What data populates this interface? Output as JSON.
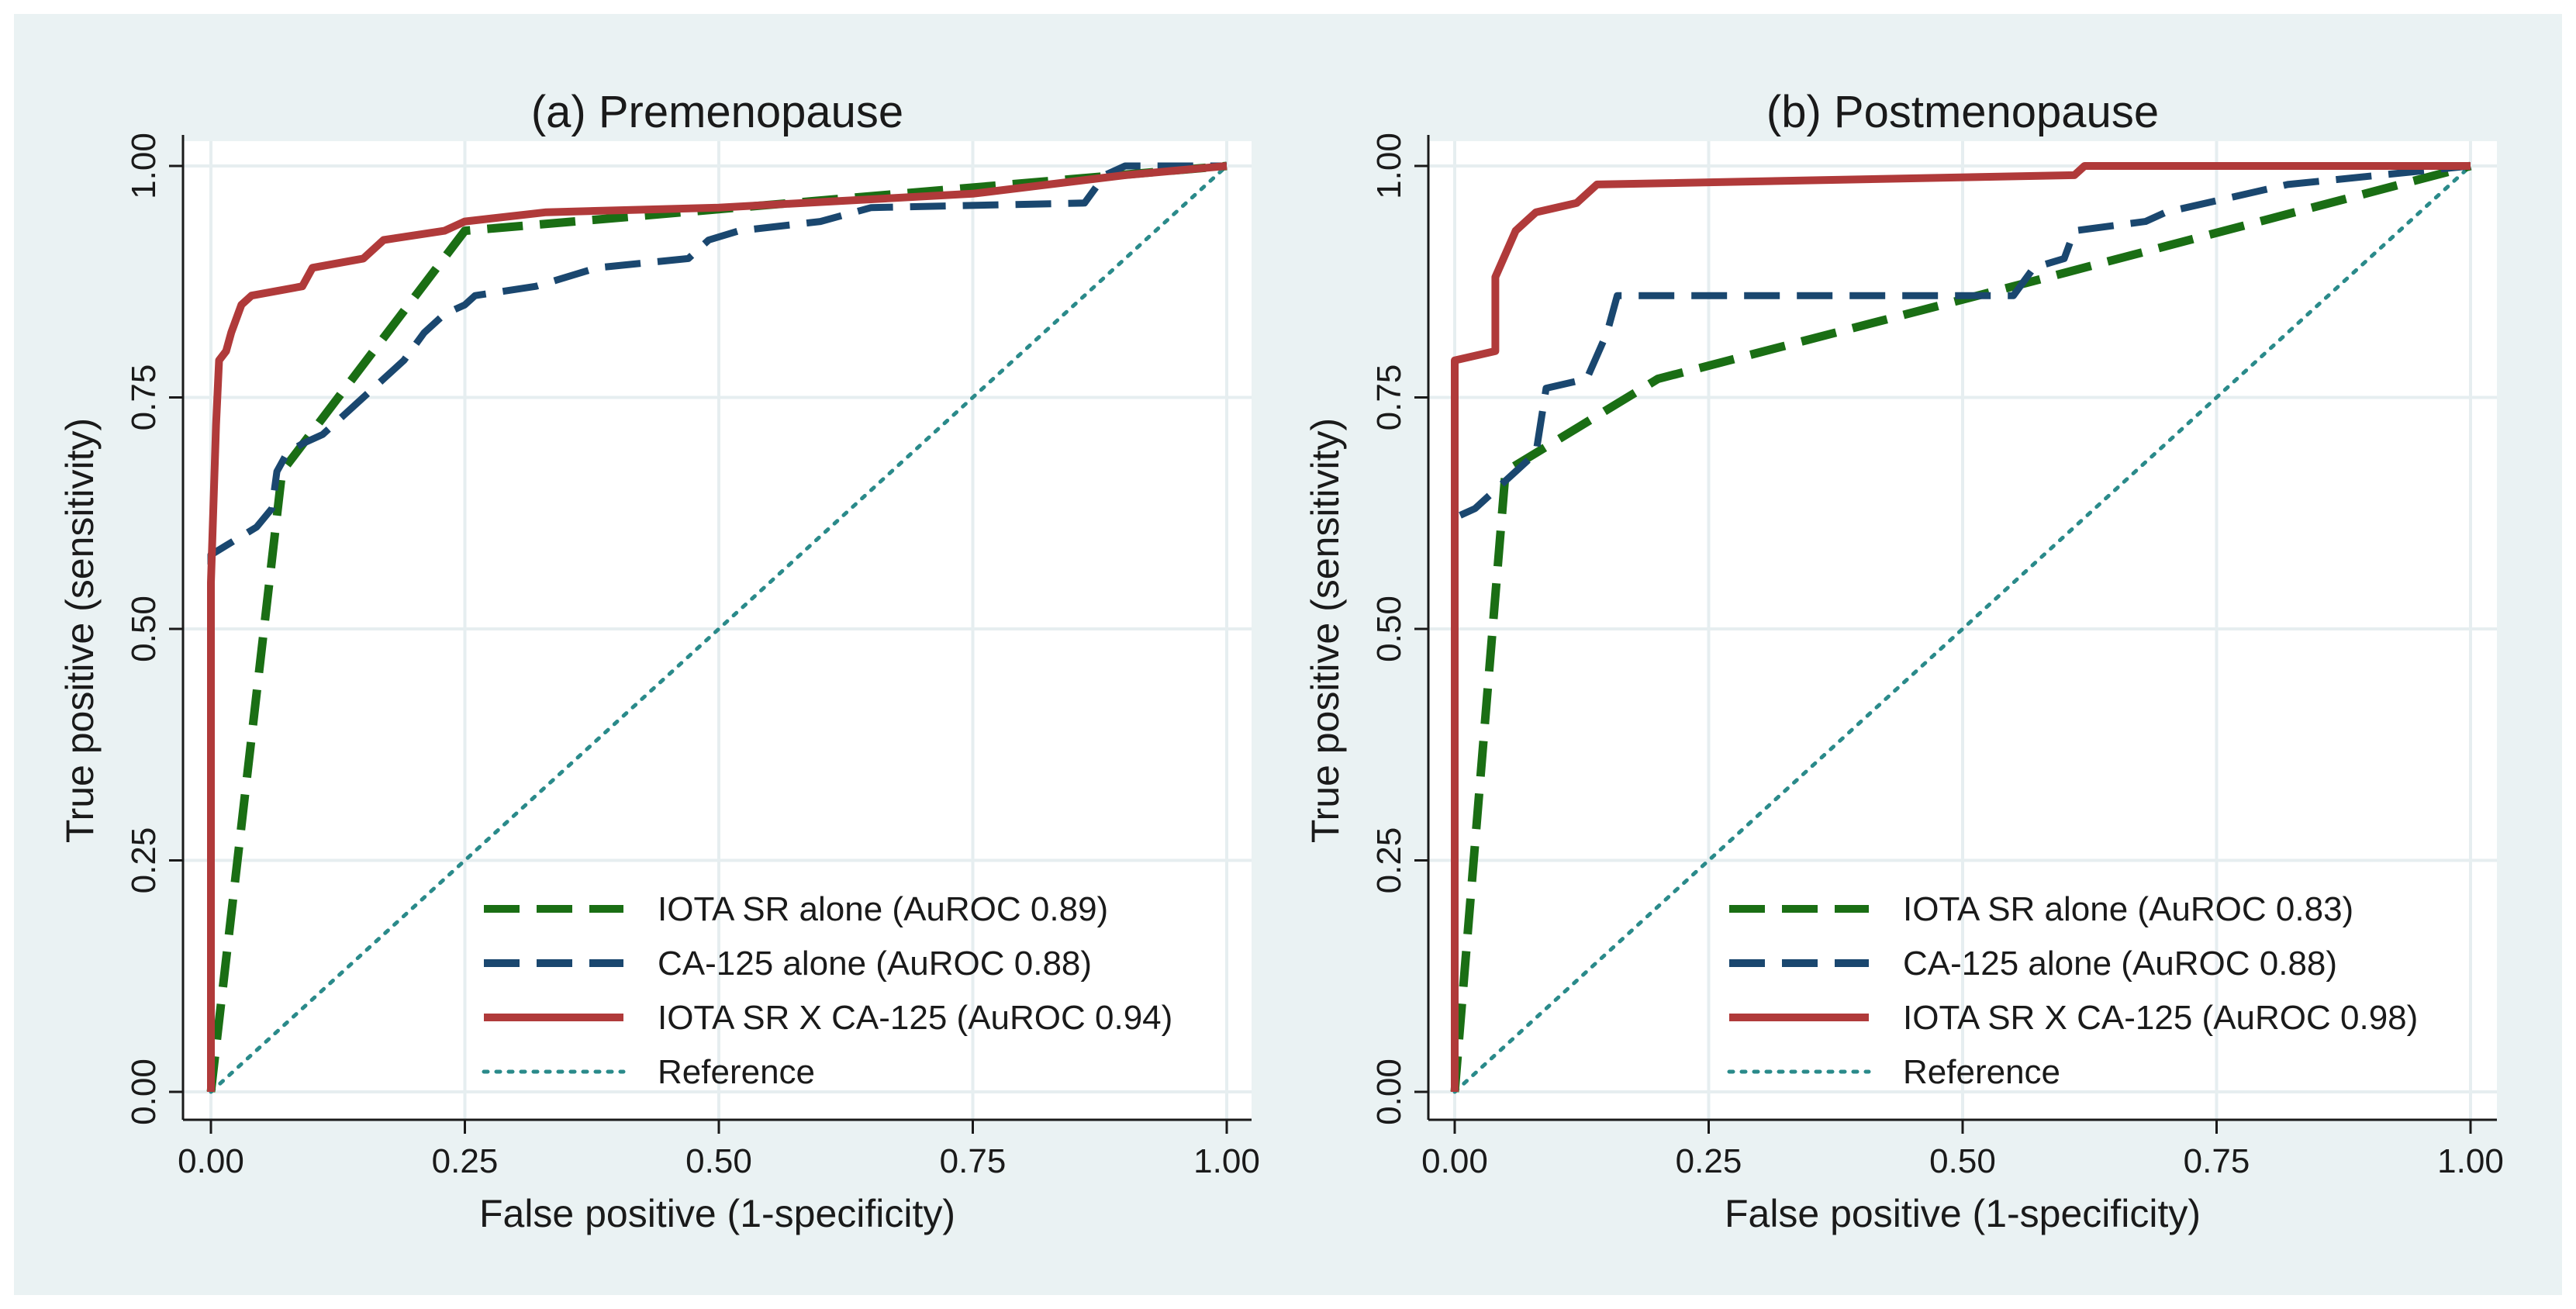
{
  "colors": {
    "background": "#eaf2f3",
    "plot_background": "#ffffff",
    "grid": "#e6eef0",
    "iota": "#1a6e14",
    "ca125": "#1a476f",
    "combined": "#b03a3a",
    "reference": "#2a8a8a"
  },
  "chart_data": [
    {
      "type": "line",
      "title": "(a) Premenopause",
      "xlabel": "False positive (1-specificity)",
      "ylabel": "True positive (sensitivity)",
      "xlim": [
        0,
        1
      ],
      "ylim": [
        0,
        1
      ],
      "xticks": [
        "0.00",
        "0.25",
        "0.50",
        "0.75",
        "1.00"
      ],
      "yticks": [
        "0.00",
        "0.25",
        "0.50",
        "0.75",
        "1.00"
      ],
      "grid": true,
      "legend_position": "bottom-right",
      "series": [
        {
          "key": "iota",
          "name": "IOTA SR alone (AuROC 0.89)",
          "style": "dashed",
          "points": [
            [
              0,
              0
            ],
            [
              0.07,
              0.67
            ],
            [
              0.25,
              0.93
            ],
            [
              1,
              1
            ]
          ]
        },
        {
          "key": "ca125",
          "name": "CA-125 alone (AuROC 0.88)",
          "style": "dashed",
          "points": [
            [
              0,
              0
            ],
            [
              0,
              0.58
            ],
            [
              0.015,
              0.59
            ],
            [
              0.03,
              0.6
            ],
            [
              0.045,
              0.61
            ],
            [
              0.06,
              0.63
            ],
            [
              0.065,
              0.67
            ],
            [
              0.075,
              0.69
            ],
            [
              0.09,
              0.7
            ],
            [
              0.11,
              0.71
            ],
            [
              0.13,
              0.73
            ],
            [
              0.15,
              0.75
            ],
            [
              0.17,
              0.77
            ],
            [
              0.19,
              0.79
            ],
            [
              0.21,
              0.82
            ],
            [
              0.23,
              0.84
            ],
            [
              0.25,
              0.85
            ],
            [
              0.26,
              0.86
            ],
            [
              0.32,
              0.87
            ],
            [
              0.38,
              0.89
            ],
            [
              0.47,
              0.9
            ],
            [
              0.49,
              0.92
            ],
            [
              0.52,
              0.93
            ],
            [
              0.6,
              0.94
            ],
            [
              0.65,
              0.955
            ],
            [
              0.86,
              0.96
            ],
            [
              0.88,
              0.99
            ],
            [
              0.9,
              1.0
            ],
            [
              1,
              1
            ]
          ]
        },
        {
          "key": "combined",
          "name": "IOTA SR X CA-125 (AuROC 0.94)",
          "style": "solid",
          "points": [
            [
              0,
              0
            ],
            [
              0,
              0.55
            ],
            [
              0.005,
              0.72
            ],
            [
              0.008,
              0.79
            ],
            [
              0.015,
              0.8
            ],
            [
              0.02,
              0.82
            ],
            [
              0.03,
              0.85
            ],
            [
              0.04,
              0.86
            ],
            [
              0.09,
              0.87
            ],
            [
              0.1,
              0.89
            ],
            [
              0.15,
              0.9
            ],
            [
              0.17,
              0.92
            ],
            [
              0.23,
              0.93
            ],
            [
              0.25,
              0.94
            ],
            [
              0.33,
              0.95
            ],
            [
              0.5,
              0.955
            ],
            [
              0.75,
              0.97
            ],
            [
              0.9,
              0.99
            ],
            [
              1,
              1
            ]
          ]
        },
        {
          "key": "reference",
          "name": "Reference",
          "style": "dotted",
          "points": [
            [
              0,
              0
            ],
            [
              1,
              1
            ]
          ]
        }
      ]
    },
    {
      "type": "line",
      "title": "(b) Postmenopause",
      "xlabel": "False positive (1-specificity)",
      "ylabel": "True positive (sensitivity)",
      "xlim": [
        0,
        1
      ],
      "ylim": [
        0,
        1
      ],
      "xticks": [
        "0.00",
        "0.25",
        "0.50",
        "0.75",
        "1.00"
      ],
      "yticks": [
        "0.00",
        "0.25",
        "0.50",
        "0.75",
        "1.00"
      ],
      "grid": true,
      "legend_position": "bottom-right",
      "series": [
        {
          "key": "iota",
          "name": "IOTA SR alone (AuROC 0.83)",
          "style": "dashed",
          "points": [
            [
              0,
              0
            ],
            [
              0.05,
              0.67
            ],
            [
              0.2,
              0.77
            ],
            [
              0.55,
              0.87
            ],
            [
              1,
              1
            ]
          ]
        },
        {
          "key": "ca125",
          "name": "CA-125 alone (AuROC 0.88)",
          "style": "dashed",
          "points": [
            [
              0,
              0
            ],
            [
              0,
              0.62
            ],
            [
              0.02,
              0.63
            ],
            [
              0.04,
              0.65
            ],
            [
              0.06,
              0.67
            ],
            [
              0.08,
              0.69
            ],
            [
              0.09,
              0.76
            ],
            [
              0.13,
              0.77
            ],
            [
              0.15,
              0.82
            ],
            [
              0.16,
              0.86
            ],
            [
              0.55,
              0.86
            ],
            [
              0.57,
              0.89
            ],
            [
              0.6,
              0.9
            ],
            [
              0.61,
              0.93
            ],
            [
              0.68,
              0.94
            ],
            [
              0.7,
              0.95
            ],
            [
              0.82,
              0.98
            ],
            [
              1,
              1
            ]
          ]
        },
        {
          "key": "combined",
          "name": "IOTA SR X CA-125 (AuROC 0.98)",
          "style": "solid",
          "points": [
            [
              0,
              0
            ],
            [
              0,
              0.79
            ],
            [
              0.04,
              0.8
            ],
            [
              0.04,
              0.88
            ],
            [
              0.06,
              0.93
            ],
            [
              0.07,
              0.94
            ],
            [
              0.08,
              0.95
            ],
            [
              0.12,
              0.96
            ],
            [
              0.14,
              0.98
            ],
            [
              0.61,
              0.99
            ],
            [
              0.62,
              1.0
            ],
            [
              1,
              1
            ]
          ]
        },
        {
          "key": "reference",
          "name": "Reference",
          "style": "dotted",
          "points": [
            [
              0,
              0
            ],
            [
              1,
              1
            ]
          ]
        }
      ]
    }
  ]
}
